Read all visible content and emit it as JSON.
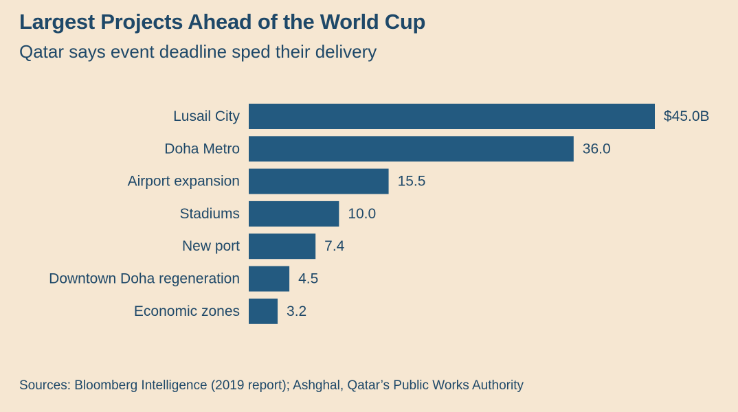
{
  "title": "Largest Projects Ahead of the World Cup",
  "subtitle": "Qatar says event deadline sped their delivery",
  "source": "Sources: Bloomberg Intelligence (2019 report); Ashghal, Qatar’s Public Works Authority",
  "colors": {
    "background": "#f6e7d2",
    "bar": "#235a80",
    "text": "#1e4868"
  },
  "chart_data": {
    "type": "bar",
    "orientation": "horizontal",
    "categories": [
      "Lusail City",
      "Doha Metro",
      "Airport expansion",
      "Stadiums",
      "New port",
      "Downtown Doha regeneration",
      "Economic zones"
    ],
    "values": [
      45.0,
      36.0,
      15.5,
      10.0,
      7.4,
      4.5,
      3.2
    ],
    "value_labels": [
      "$45.0B",
      "36.0",
      "15.5",
      "10.0",
      "7.4",
      "4.5",
      "3.2"
    ],
    "title": "Largest Projects Ahead of the World Cup",
    "subtitle": "Qatar says event deadline sped their delivery",
    "unit": "$B",
    "xlim": [
      0,
      45
    ],
    "grid": false,
    "legend": "none"
  }
}
